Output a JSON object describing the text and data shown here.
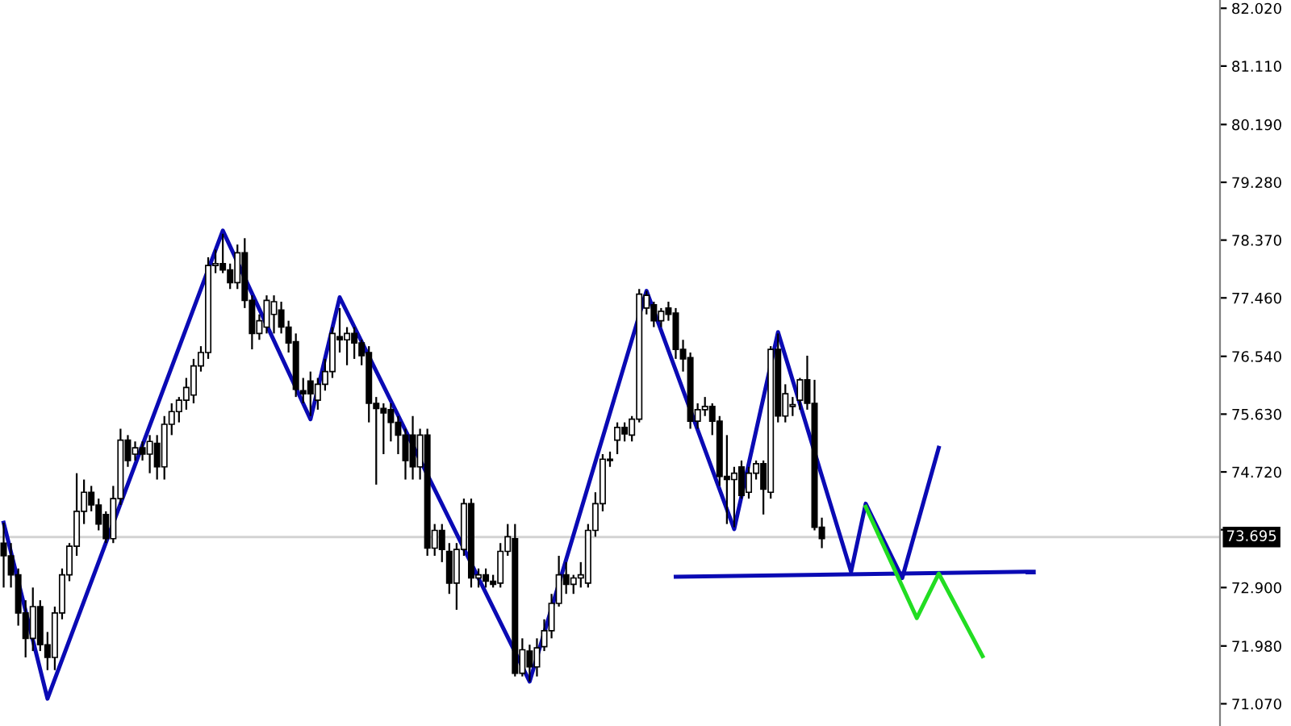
{
  "chart_data": {
    "type": "candlestick",
    "categories": [
      null,
      null,
      null,
      null,
      null,
      null,
      null,
      null,
      null,
      null,
      null,
      null,
      null,
      null,
      null,
      null,
      null,
      null,
      null,
      null,
      null,
      null,
      null,
      null,
      null,
      null,
      null,
      null,
      null,
      null,
      null,
      null,
      null,
      null,
      null,
      null,
      null,
      null,
      null,
      null,
      null,
      null,
      null,
      null,
      null,
      null,
      null,
      null,
      null,
      null,
      null,
      null,
      null,
      null,
      null,
      null,
      null,
      null,
      null,
      null,
      null,
      null,
      null,
      null,
      null,
      null,
      null,
      null,
      null,
      null,
      null,
      null,
      null,
      null,
      null,
      null,
      null,
      null,
      null,
      null,
      null,
      null,
      null,
      null,
      null,
      null,
      null,
      null,
      null,
      null,
      null,
      null,
      null,
      null,
      null,
      null,
      null,
      null,
      null,
      null,
      null,
      null,
      null,
      null,
      null,
      null,
      null,
      null,
      null,
      null,
      null,
      null,
      null,
      null,
      null,
      null,
      null,
      null,
      null,
      null,
      null,
      null,
      null,
      null,
      null,
      null,
      null,
      null,
      null,
      null,
      null,
      null,
      null,
      null,
      null,
      null,
      null,
      null,
      null,
      null,
      null,
      null,
      null,
      null,
      null,
      null,
      null,
      null,
      null,
      null,
      null,
      null,
      null,
      null,
      null,
      null,
      null,
      null,
      null,
      null,
      null,
      null,
      null,
      null,
      null,
      null,
      null
    ],
    "color": "#000000",
    "ohlc": [
      [
        73.6,
        73.92,
        72.9,
        73.4
      ],
      [
        73.4,
        73.6,
        72.9,
        73.1
      ],
      [
        73.1,
        73.2,
        72.3,
        72.5
      ],
      [
        72.5,
        72.7,
        71.8,
        72.1
      ],
      [
        72.1,
        72.9,
        71.9,
        72.6
      ],
      [
        72.6,
        72.7,
        71.9,
        72.0
      ],
      [
        72.0,
        72.2,
        71.6,
        71.8
      ],
      [
        71.8,
        72.6,
        71.6,
        72.5
      ],
      [
        72.5,
        73.2,
        72.4,
        73.1
      ],
      [
        73.1,
        73.6,
        73.0,
        73.55
      ],
      [
        73.55,
        74.7,
        73.4,
        74.1
      ],
      [
        74.1,
        74.6,
        73.9,
        74.4
      ],
      [
        74.4,
        74.5,
        74.1,
        74.2
      ],
      [
        74.2,
        74.3,
        73.8,
        73.9
      ],
      [
        74.05,
        74.1,
        73.6,
        73.67
      ],
      [
        73.67,
        74.5,
        73.6,
        74.3
      ],
      [
        74.3,
        75.4,
        74.2,
        75.22
      ],
      [
        75.22,
        75.3,
        74.8,
        74.9
      ],
      [
        75.0,
        75.2,
        74.9,
        75.1
      ],
      [
        75.1,
        75.2,
        74.9,
        75.0
      ],
      [
        75.0,
        75.3,
        74.7,
        75.2
      ],
      [
        75.17,
        75.3,
        74.6,
        74.8
      ],
      [
        74.8,
        75.6,
        74.6,
        75.47
      ],
      [
        75.47,
        75.8,
        75.3,
        75.67
      ],
      [
        75.67,
        75.9,
        75.5,
        75.85
      ],
      [
        75.85,
        76.2,
        75.7,
        76.05
      ],
      [
        75.93,
        76.5,
        75.8,
        76.39
      ],
      [
        76.39,
        76.7,
        76.3,
        76.6
      ],
      [
        76.6,
        78.1,
        76.5,
        77.97
      ],
      [
        77.97,
        78.22,
        77.85,
        78.0
      ],
      [
        78.0,
        78.47,
        77.85,
        77.9
      ],
      [
        77.9,
        78.0,
        77.6,
        77.7
      ],
      [
        77.7,
        78.3,
        77.6,
        78.17
      ],
      [
        78.17,
        78.4,
        77.3,
        77.42
      ],
      [
        77.42,
        77.5,
        76.65,
        76.9
      ],
      [
        76.9,
        77.2,
        76.8,
        77.1
      ],
      [
        77.0,
        77.5,
        76.9,
        77.42
      ],
      [
        77.2,
        77.5,
        76.9,
        77.4
      ],
      [
        77.27,
        77.4,
        76.9,
        77.0
      ],
      [
        77.0,
        77.1,
        76.6,
        76.75
      ],
      [
        76.77,
        76.9,
        75.9,
        76.02
      ],
      [
        76.0,
        76.2,
        75.8,
        75.95
      ],
      [
        76.15,
        76.3,
        75.6,
        75.95
      ],
      [
        75.85,
        76.2,
        75.7,
        76.1
      ],
      [
        76.1,
        76.5,
        76.0,
        76.3
      ],
      [
        76.3,
        77.0,
        76.2,
        76.9
      ],
      [
        76.85,
        77.3,
        76.6,
        76.8
      ],
      [
        76.8,
        77.0,
        76.4,
        76.9
      ],
      [
        76.9,
        77.0,
        76.5,
        76.75
      ],
      [
        76.75,
        76.8,
        76.4,
        76.55
      ],
      [
        76.6,
        76.7,
        75.5,
        75.8
      ],
      [
        75.8,
        75.9,
        74.52,
        75.72
      ],
      [
        75.72,
        75.8,
        75.0,
        75.65
      ],
      [
        75.7,
        75.8,
        75.2,
        75.5
      ],
      [
        75.5,
        75.6,
        75.0,
        75.3
      ],
      [
        75.3,
        75.4,
        74.6,
        74.9
      ],
      [
        75.3,
        75.6,
        74.6,
        74.8
      ],
      [
        74.8,
        75.4,
        74.6,
        75.3
      ],
      [
        75.3,
        75.4,
        73.4,
        73.52
      ],
      [
        73.52,
        73.9,
        73.4,
        73.8
      ],
      [
        73.8,
        73.9,
        73.3,
        73.5
      ],
      [
        73.47,
        73.6,
        72.8,
        72.97
      ],
      [
        72.97,
        73.6,
        72.55,
        73.5
      ],
      [
        73.5,
        74.3,
        73.4,
        74.22
      ],
      [
        74.22,
        74.3,
        72.9,
        73.05
      ],
      [
        73.05,
        73.2,
        72.9,
        73.1
      ],
      [
        73.1,
        73.2,
        72.9,
        73.0
      ],
      [
        73.0,
        73.1,
        72.9,
        72.95
      ],
      [
        72.97,
        73.6,
        72.9,
        73.47
      ],
      [
        73.47,
        73.9,
        73.4,
        73.7
      ],
      [
        73.67,
        73.9,
        71.5,
        71.55
      ],
      [
        71.55,
        72.1,
        71.5,
        71.92
      ],
      [
        71.9,
        72.0,
        71.42,
        71.65
      ],
      [
        71.65,
        72.1,
        71.5,
        71.95
      ],
      [
        71.97,
        72.4,
        71.9,
        72.22
      ],
      [
        72.22,
        72.8,
        72.1,
        72.65
      ],
      [
        72.65,
        73.4,
        72.6,
        73.1
      ],
      [
        73.1,
        73.3,
        72.8,
        72.95
      ],
      [
        72.95,
        73.1,
        72.8,
        73.05
      ],
      [
        73.05,
        73.3,
        72.9,
        73.1
      ],
      [
        72.97,
        73.9,
        72.9,
        73.8
      ],
      [
        73.8,
        74.4,
        73.7,
        74.22
      ],
      [
        74.22,
        75.0,
        74.1,
        74.92
      ],
      [
        74.9,
        75.04,
        74.8,
        74.92
      ],
      [
        75.22,
        75.5,
        75.0,
        75.42
      ],
      [
        75.42,
        75.5,
        75.2,
        75.32
      ],
      [
        75.3,
        75.6,
        75.2,
        75.55
      ],
      [
        75.55,
        77.6,
        75.5,
        77.52
      ],
      [
        77.3,
        77.57,
        77.2,
        77.5
      ],
      [
        77.35,
        77.4,
        77.0,
        77.1
      ],
      [
        77.1,
        77.3,
        77.0,
        77.25
      ],
      [
        77.3,
        77.4,
        77.1,
        77.2
      ],
      [
        77.22,
        77.3,
        76.5,
        76.65
      ],
      [
        76.65,
        76.8,
        76.3,
        76.5
      ],
      [
        76.52,
        76.6,
        75.4,
        75.52
      ],
      [
        75.52,
        75.8,
        75.4,
        75.7
      ],
      [
        75.7,
        75.9,
        75.6,
        75.75
      ],
      [
        75.75,
        75.8,
        75.3,
        75.52
      ],
      [
        75.52,
        75.6,
        74.5,
        74.65
      ],
      [
        74.65,
        75.3,
        73.9,
        74.6
      ],
      [
        74.6,
        74.8,
        73.85,
        74.7
      ],
      [
        74.8,
        74.9,
        74.3,
        74.35
      ],
      [
        74.4,
        74.8,
        74.3,
        74.7
      ],
      [
        74.7,
        74.9,
        74.6,
        74.85
      ],
      [
        74.85,
        74.9,
        74.05,
        74.45
      ],
      [
        74.4,
        76.7,
        74.3,
        76.65
      ],
      [
        76.65,
        76.9,
        75.5,
        75.6
      ],
      [
        75.6,
        76.1,
        75.5,
        75.95
      ],
      [
        75.75,
        75.9,
        75.6,
        75.78
      ],
      [
        75.85,
        76.2,
        75.7,
        76.17
      ],
      [
        76.17,
        76.55,
        75.7,
        75.8
      ],
      [
        75.8,
        76.17,
        73.8,
        73.85
      ],
      [
        73.85,
        74.0,
        73.52,
        73.67
      ],
      null,
      null,
      null,
      null,
      null,
      null,
      null,
      null,
      null,
      null,
      null,
      null,
      null,
      null,
      null,
      null,
      null,
      null,
      null,
      null,
      null,
      null,
      null,
      null,
      null,
      null,
      null,
      null,
      null,
      null,
      null,
      null,
      null,
      null,
      null,
      null,
      null,
      null,
      null,
      null,
      null,
      null,
      null,
      null,
      null,
      null,
      null,
      null,
      null,
      null,
      null,
      null,
      null,
      null
    ],
    "series": [
      {
        "type": "line",
        "color": "#0a0ab4",
        "values": [
          73.92,
          null,
          null,
          null,
          null,
          null,
          71.15,
          null,
          null,
          null,
          null,
          null,
          null,
          null,
          null,
          null,
          null,
          null,
          null,
          null,
          null,
          null,
          null,
          null,
          null,
          null,
          null,
          null,
          null,
          null,
          78.52,
          null,
          null,
          null,
          null,
          null,
          null,
          null,
          null,
          null,
          null,
          null,
          75.55,
          null,
          null,
          null,
          77.47,
          null,
          null,
          null,
          null,
          null,
          null,
          null,
          null,
          null,
          null,
          null,
          null,
          null,
          null,
          null,
          null,
          null,
          null,
          null,
          null,
          null,
          null,
          null,
          null,
          null,
          71.42,
          null,
          null,
          null,
          null,
          null,
          null,
          null,
          null,
          null,
          null,
          null,
          null,
          null,
          null,
          null,
          77.57,
          null,
          null,
          null,
          null,
          null,
          null,
          null,
          null,
          null,
          null,
          null,
          73.82,
          null,
          null,
          null,
          null,
          null,
          76.92,
          null,
          null,
          null,
          null,
          null,
          null,
          null,
          null,
          null,
          73.15,
          null,
          74.22,
          null,
          null,
          null,
          null,
          73.05,
          null,
          null,
          null,
          null,
          75.1,
          null,
          null,
          null,
          null,
          null,
          null,
          null,
          null,
          null,
          null,
          null,
          null,
          null,
          null,
          null,
          null,
          null,
          null,
          null,
          null,
          null,
          null,
          null,
          null,
          null,
          null,
          null,
          null,
          null,
          null,
          null,
          null,
          null,
          null,
          null,
          null,
          null,
          null
        ]
      },
      {
        "type": "line",
        "color": "#0a0ab4",
        "values": [
          null,
          null,
          null,
          null,
          null,
          null,
          null,
          null,
          null,
          null,
          null,
          null,
          null,
          null,
          null,
          null,
          null,
          null,
          null,
          null,
          null,
          null,
          null,
          null,
          null,
          null,
          null,
          null,
          null,
          null,
          null,
          null,
          null,
          null,
          null,
          null,
          null,
          null,
          null,
          null,
          null,
          null,
          null,
          null,
          null,
          null,
          null,
          null,
          null,
          null,
          null,
          null,
          null,
          null,
          null,
          null,
          null,
          null,
          null,
          null,
          null,
          null,
          null,
          null,
          null,
          null,
          null,
          null,
          null,
          null,
          null,
          null,
          null,
          null,
          null,
          null,
          null,
          null,
          null,
          null,
          null,
          null,
          null,
          null,
          null,
          null,
          null,
          null,
          null,
          null,
          null,
          null,
          73.07,
          null,
          null,
          null,
          null,
          null,
          null,
          null,
          null,
          null,
          null,
          null,
          null,
          null,
          null,
          null,
          null,
          null,
          null,
          null,
          null,
          null,
          null,
          null,
          null,
          null,
          null,
          null,
          null,
          null,
          null,
          null,
          null,
          null,
          null,
          null,
          null,
          null,
          null,
          null,
          null,
          null,
          null,
          null,
          null,
          null,
          null,
          null,
          null,
          73.15,
          null,
          null,
          null,
          null,
          null,
          null,
          null,
          null,
          null,
          null,
          null,
          null,
          null,
          null,
          null,
          null,
          null,
          null,
          null,
          null,
          null,
          null,
          null,
          null,
          null
        ]
      },
      {
        "type": "line",
        "color": "#22dd22",
        "values": [
          null,
          null,
          null,
          null,
          null,
          null,
          null,
          null,
          null,
          null,
          null,
          null,
          null,
          null,
          null,
          null,
          null,
          null,
          null,
          null,
          null,
          null,
          null,
          null,
          null,
          null,
          null,
          null,
          null,
          null,
          null,
          null,
          null,
          null,
          null,
          null,
          null,
          null,
          null,
          null,
          null,
          null,
          null,
          null,
          null,
          null,
          null,
          null,
          null,
          null,
          null,
          null,
          null,
          null,
          null,
          null,
          null,
          null,
          null,
          null,
          null,
          null,
          null,
          null,
          null,
          null,
          null,
          null,
          null,
          null,
          null,
          null,
          null,
          null,
          null,
          null,
          null,
          null,
          null,
          null,
          null,
          null,
          null,
          null,
          null,
          null,
          null,
          null,
          null,
          null,
          null,
          null,
          null,
          null,
          null,
          null,
          null,
          null,
          null,
          null,
          null,
          null,
          null,
          null,
          null,
          null,
          null,
          null,
          null,
          null,
          null,
          null,
          null,
          null,
          null,
          null,
          null,
          null,
          74.17,
          null,
          null,
          null,
          null,
          null,
          null,
          72.42,
          null,
          null,
          73.12,
          null,
          null,
          null,
          null,
          null,
          71.82,
          null,
          null,
          null,
          null,
          null,
          null,
          null,
          null,
          null,
          null,
          null,
          null,
          null,
          null,
          null,
          null,
          null,
          null,
          null,
          null,
          null,
          null,
          null,
          null,
          null,
          null,
          null,
          null,
          null,
          null,
          null,
          null
        ]
      }
    ],
    "ylim": [
      70.72,
      82.15
    ],
    "yticks": [
      {
        "value": 71.07,
        "label": "71.070"
      },
      {
        "value": 71.98,
        "label": "71.980"
      },
      {
        "value": 72.9,
        "label": "72.900"
      },
      {
        "value": 73.81,
        "label": null
      },
      {
        "value": 74.72,
        "label": "74.720"
      },
      {
        "value": 75.63,
        "label": "75.630"
      },
      {
        "value": 76.54,
        "label": "76.540"
      },
      {
        "value": 77.46,
        "label": "77.460"
      },
      {
        "value": 78.37,
        "label": "78.370"
      },
      {
        "value": 79.28,
        "label": "79.280"
      },
      {
        "value": 80.19,
        "label": "80.190"
      },
      {
        "value": 81.11,
        "label": "81.110"
      },
      {
        "value": 82.02,
        "label": "82.020"
      }
    ],
    "ref_lines": [
      {
        "axis": "y",
        "value": 73.695,
        "label": "73.695",
        "color": "#d3d3d3",
        "line_style": "solid"
      }
    ],
    "tick_labels": "y",
    "grid": false,
    "legend": false
  }
}
